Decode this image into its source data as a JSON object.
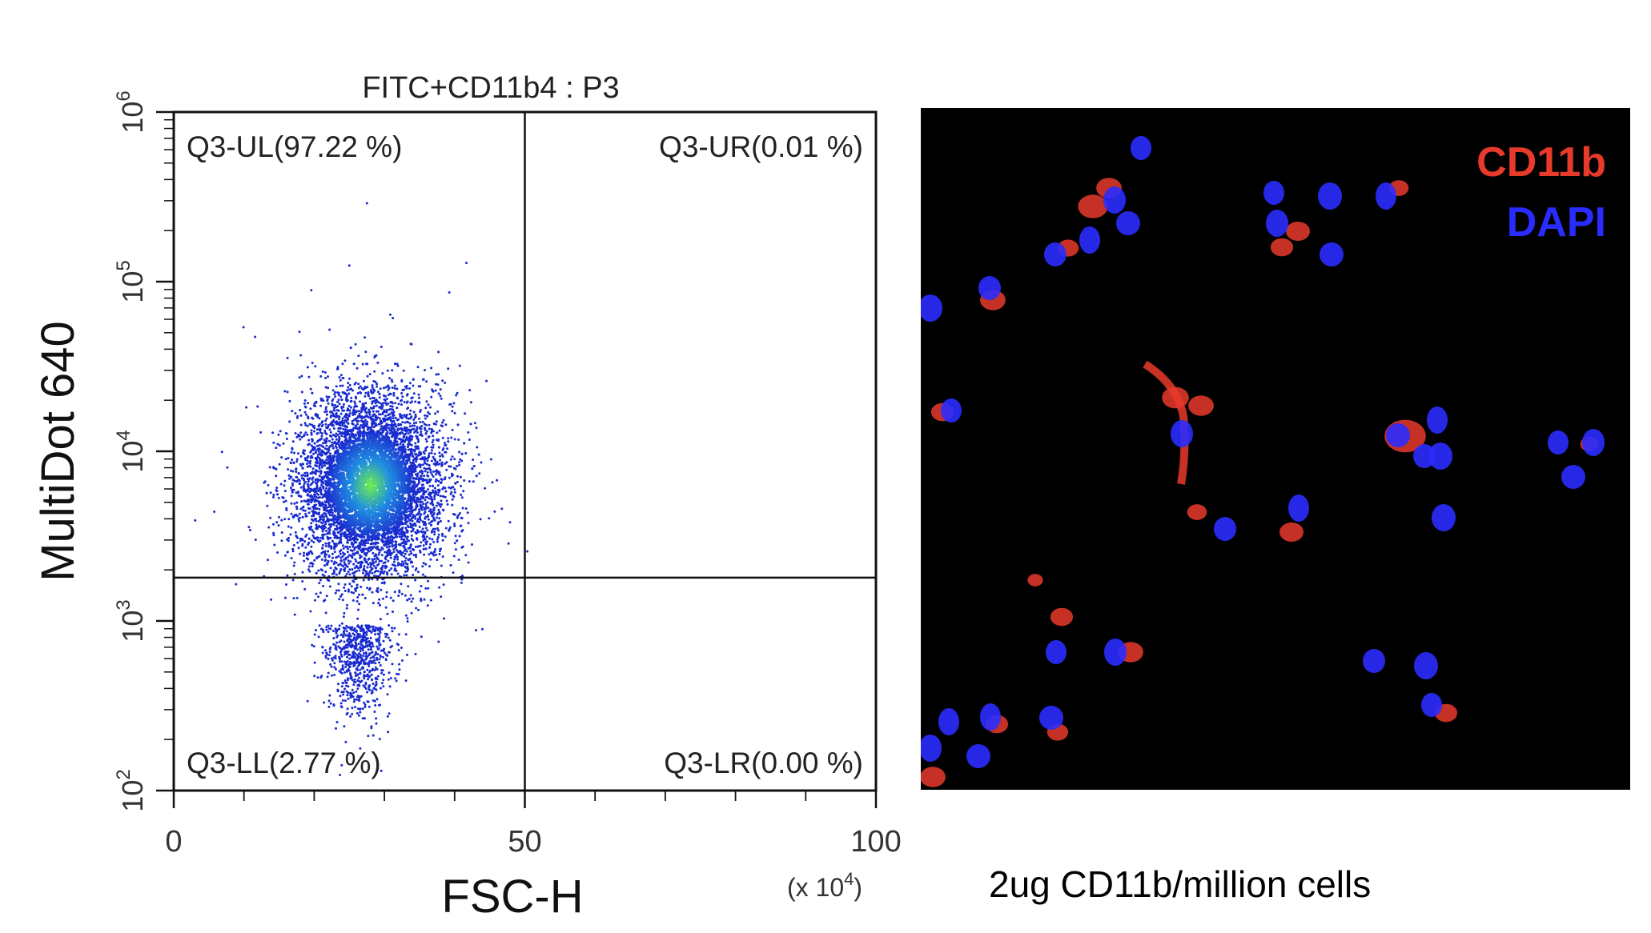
{
  "chart_data": {
    "type": "scatter",
    "title": "FITC+CD11b4 : P3",
    "xlabel": "FSC-H",
    "ylabel": "MultiDot 640",
    "x_unit_label": "(x 10",
    "x_unit_exp": "4",
    "x_unit_close": ")",
    "xlim": [
      0,
      100
    ],
    "ylim_log10": [
      2,
      6
    ],
    "y_scale": "log",
    "x_ticks": [
      "0",
      "50",
      "100"
    ],
    "y_ticks": [
      {
        "base": "10",
        "exp": "2"
      },
      {
        "base": "10",
        "exp": "3"
      },
      {
        "base": "10",
        "exp": "4"
      },
      {
        "base": "10",
        "exp": "5"
      },
      {
        "base": "10",
        "exp": "6"
      }
    ],
    "gate": {
      "x": 50,
      "y": 1800
    },
    "quadrants": [
      {
        "label": "Q3-UL(97.22 %)",
        "percent": 97.22
      },
      {
        "label": "Q3-UR(0.01 %)",
        "percent": 0.01
      },
      {
        "label": "Q3-LL(2.77 %)",
        "percent": 2.77
      },
      {
        "label": "Q3-LR(0.00 %)",
        "percent": 0.0
      }
    ],
    "population": {
      "x_center": 28,
      "y_center": 6300,
      "x_sd": 5.2,
      "log10_y_sd": 0.27
    },
    "colors": {
      "low": "#1a2ccf",
      "mid": "#1f8fe0",
      "high": "#6ff04a"
    }
  },
  "micrograph": {
    "legend": [
      {
        "label": "CD11b",
        "color": "#e83a2a"
      },
      {
        "label": "DAPI",
        "color": "#2a2cff"
      }
    ],
    "caption": "2ug CD11b/million cells"
  }
}
